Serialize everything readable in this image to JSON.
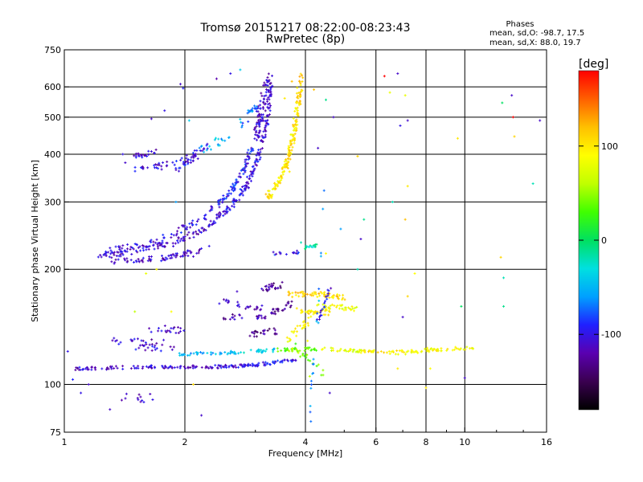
{
  "chart_data": {
    "type": "scatter",
    "title": "Tromsø 20151217 08:22:00-08:23:43",
    "subtitle": "RwPretec (8p)",
    "xlabel": "Frequency [MHz]",
    "ylabel": "Stationary phase Virtual Height [km]",
    "x_scale": "log",
    "y_scale": "log",
    "xlim": [
      1,
      16
    ],
    "ylim": [
      75,
      750
    ],
    "x_ticks": [
      {
        "value": 1,
        "label": "1"
      },
      {
        "value": 2,
        "label": "2"
      },
      {
        "value": 4,
        "label": "4"
      },
      {
        "value": 6,
        "label": "6"
      },
      {
        "value": 8,
        "label": "8"
      },
      {
        "value": 10,
        "label": "10"
      },
      {
        "value": 16,
        "label": "16"
      }
    ],
    "x_gridlines": [
      2,
      4,
      6,
      8,
      10
    ],
    "y_ticks": [
      {
        "value": 75,
        "label": "75"
      },
      {
        "value": 100,
        "label": "100"
      },
      {
        "value": 200,
        "label": "200"
      },
      {
        "value": 300,
        "label": "300"
      },
      {
        "value": 400,
        "label": "400"
      },
      {
        "value": 500,
        "label": "500"
      },
      {
        "value": 600,
        "label": "600"
      },
      {
        "value": 750,
        "label": "750"
      }
    ],
    "y_gridlines": [
      100,
      200,
      300,
      400,
      500,
      600
    ],
    "grid": true,
    "stats": {
      "heading": "Phases",
      "o_line": "mean, sd,O: -98.7, 17.5",
      "x_line": "mean, sd,X:  88.0, 19.7"
    },
    "colorbar": {
      "label": "[deg]",
      "range": [
        -180,
        180
      ],
      "ticks": [
        {
          "value": 100,
          "label": "100"
        },
        {
          "value": 0,
          "label": "0"
        },
        {
          "value": -100,
          "label": "-100"
        }
      ],
      "colormap": [
        "#000000",
        "#3a0050",
        "#5a00b0",
        "#2020ff",
        "#00a0ff",
        "#00e0e0",
        "#00e060",
        "#40ff00",
        "#c0ff00",
        "#ffff00",
        "#ffc000",
        "#ff6000",
        "#ff0000"
      ]
    },
    "traces": [
      {
        "segments": [
          [
            1.2,
            215,
            1.5,
            224,
            -110
          ],
          [
            1.5,
            224,
            1.9,
            235,
            -110
          ],
          [
            1.9,
            235,
            2.3,
            260,
            -110
          ],
          [
            2.3,
            260,
            2.6,
            290,
            -105
          ],
          [
            2.6,
            290,
            2.85,
            330,
            -100
          ],
          [
            2.85,
            330,
            3.05,
            390,
            -100
          ],
          [
            3.05,
            390,
            3.2,
            480,
            -105
          ],
          [
            3.2,
            480,
            3.3,
            620,
            -110
          ]
        ],
        "n": 260,
        "jitter": 0.012
      },
      {
        "segments": [
          [
            1.25,
            222,
            1.7,
            236,
            -105
          ],
          [
            1.7,
            236,
            2.2,
            270,
            -100
          ],
          [
            2.2,
            270,
            2.55,
            310,
            -95
          ],
          [
            2.55,
            310,
            2.8,
            360,
            -90
          ],
          [
            2.8,
            360,
            2.95,
            420,
            -95
          ]
        ],
        "n": 150,
        "jitter": 0.012
      },
      {
        "segments": [
          [
            1.3,
            210,
            1.8,
            214,
            -110
          ],
          [
            1.8,
            214,
            2.2,
            225,
            -110
          ]
        ],
        "n": 70,
        "jitter": 0.01
      },
      {
        "segments": [
          [
            3.0,
            440,
            3.1,
            520,
            -110
          ],
          [
            3.1,
            520,
            3.25,
            640,
            -110
          ]
        ],
        "n": 90,
        "jitter": 0.02
      },
      {
        "segments": [
          [
            3.2,
            305,
            3.45,
            340,
            100
          ],
          [
            3.45,
            340,
            3.6,
            380,
            100
          ],
          [
            3.6,
            380,
            3.72,
            440,
            105
          ],
          [
            3.72,
            440,
            3.82,
            520,
            100
          ],
          [
            3.82,
            520,
            3.9,
            640,
            110
          ]
        ],
        "n": 180,
        "jitter": 0.014
      },
      {
        "segments": [
          [
            1.05,
            110,
            1.6,
            111,
            -110
          ],
          [
            1.6,
            111,
            2.3,
            111,
            -110
          ],
          [
            2.3,
            111,
            2.9,
            112,
            -105
          ],
          [
            2.9,
            112,
            3.8,
            116,
            -100
          ]
        ],
        "n": 180,
        "jitter": 0.006
      },
      {
        "segments": [
          [
            1.9,
            120,
            2.6,
            121,
            -50
          ],
          [
            2.6,
            121,
            3.4,
            123,
            -40
          ],
          [
            3.4,
            123,
            4.4,
            124,
            40
          ],
          [
            4.4,
            124,
            5.6,
            122,
            80
          ],
          [
            5.6,
            122,
            7.5,
            122,
            100
          ],
          [
            7.5,
            122,
            10.6,
            125,
            90
          ]
        ],
        "n": 190,
        "jitter": 0.006
      },
      {
        "segments": [
          [
            3.6,
            172,
            4.4,
            172,
            110
          ],
          [
            4.4,
            172,
            5.0,
            169,
            105
          ]
        ],
        "n": 60,
        "jitter": 0.01
      },
      {
        "segments": [
          [
            4.3,
            160,
            5.4,
            158,
            80
          ],
          [
            3.8,
            156,
            4.6,
            154,
            100
          ]
        ],
        "n": 70,
        "jitter": 0.01
      },
      {
        "segments": [
          [
            3.3,
            220,
            3.9,
            222,
            -100
          ],
          [
            4.0,
            228,
            4.3,
            232,
            -20
          ]
        ],
        "n": 30,
        "jitter": 0.006
      },
      {
        "segments": [
          [
            1.5,
            365,
            1.9,
            380,
            -105
          ],
          [
            1.9,
            380,
            2.3,
            420,
            -100
          ],
          [
            1.9,
            360,
            2.15,
            395,
            -100
          ],
          [
            1.5,
            395,
            1.7,
            405,
            -110
          ]
        ],
        "n": 90,
        "jitter": 0.01
      },
      {
        "segments": [
          [
            2.2,
            410,
            2.8,
            480,
            -50
          ],
          [
            2.8,
            480,
            3.0,
            540,
            -70
          ]
        ],
        "n": 40,
        "jitter": 0.02
      },
      {
        "segments": [
          [
            2.5,
            150,
            3.2,
            150,
            -120
          ],
          [
            2.4,
            165,
            3.1,
            158,
            -115
          ],
          [
            2.9,
            135,
            3.4,
            138,
            -130
          ],
          [
            3.3,
            155,
            3.7,
            162,
            -125
          ],
          [
            3.1,
            178,
            3.5,
            182,
            -125
          ]
        ],
        "n": 120,
        "jitter": 0.012
      },
      {
        "segments": [
          [
            1.3,
            130,
            1.8,
            128,
            -110
          ],
          [
            1.5,
            125,
            1.9,
            125,
            -105
          ],
          [
            1.6,
            140,
            2.0,
            138,
            -110
          ]
        ],
        "n": 60,
        "jitter": 0.015
      },
      {
        "segments": [
          [
            1.35,
            93,
            1.65,
            92,
            -110
          ]
        ],
        "n": 12,
        "jitter": 0.02
      },
      {
        "segments": [
          [
            3.6,
            132,
            3.9,
            140,
            90
          ],
          [
            3.9,
            140,
            4.2,
            150,
            95
          ],
          [
            3.7,
            125,
            4.1,
            118,
            60
          ],
          [
            3.8,
            128,
            4.5,
            104,
            40
          ]
        ],
        "n": 50,
        "jitter": 0.015
      },
      {
        "segments": [
          [
            4.3,
            145,
            4.6,
            178,
            -100
          ],
          [
            4.1,
            80,
            4.5,
            330,
            -60
          ],
          [
            6.5,
            120,
            9.0,
            125,
            90
          ]
        ],
        "n": 60,
        "jitter": 0.01
      }
    ],
    "scattered_points": [
      [
        1.02,
        122,
        -100
      ],
      [
        1.05,
        103,
        -90
      ],
      [
        1.15,
        100,
        -110
      ],
      [
        1.1,
        95,
        -100
      ],
      [
        1.3,
        86,
        -110
      ],
      [
        1.95,
        610,
        -110
      ],
      [
        1.98,
        595,
        -90
      ],
      [
        1.78,
        520,
        -100
      ],
      [
        1.65,
        495,
        -110
      ],
      [
        2.4,
        630,
        -120
      ],
      [
        2.6,
        650,
        -100
      ],
      [
        2.75,
        665,
        -40
      ],
      [
        2.05,
        490,
        -40
      ],
      [
        1.9,
        300,
        -60
      ],
      [
        1.7,
        200,
        90
      ],
      [
        1.6,
        195,
        80
      ],
      [
        1.85,
        155,
        90
      ],
      [
        1.5,
        155,
        60
      ],
      [
        2.7,
        175,
        -110
      ],
      [
        3.5,
        185,
        -130
      ],
      [
        2.1,
        100,
        110
      ],
      [
        2.2,
        83,
        -110
      ],
      [
        4.6,
        95,
        -110
      ],
      [
        6.8,
        650,
        -110
      ],
      [
        6.3,
        640,
        180
      ],
      [
        6.6,
        300,
        -20
      ],
      [
        7.1,
        570,
        80
      ],
      [
        7.2,
        490,
        -110
      ],
      [
        6.5,
        580,
        80
      ],
      [
        6.9,
        475,
        -100
      ],
      [
        7.2,
        330,
        100
      ],
      [
        7.1,
        270,
        120
      ],
      [
        7.5,
        195,
        90
      ],
      [
        7.2,
        170,
        110
      ],
      [
        7.0,
        150,
        -110
      ],
      [
        6.8,
        110,
        100
      ],
      [
        5.4,
        200,
        -20
      ],
      [
        5.5,
        240,
        -110
      ],
      [
        5.6,
        270,
        -10
      ],
      [
        4.5,
        220,
        90
      ],
      [
        4.9,
        255,
        -60
      ],
      [
        4.7,
        500,
        -110
      ],
      [
        4.3,
        415,
        -110
      ],
      [
        4.5,
        555,
        -10
      ],
      [
        5.4,
        395,
        110
      ],
      [
        4.2,
        590,
        120
      ],
      [
        3.9,
        235,
        -20
      ],
      [
        4.1,
        105,
        60
      ],
      [
        8.2,
        110,
        90
      ],
      [
        8.0,
        98,
        100
      ],
      [
        9.6,
        440,
        100
      ],
      [
        9.8,
        160,
        0
      ],
      [
        10.0,
        104,
        -110
      ],
      [
        12.5,
        190,
        -20
      ],
      [
        12.3,
        215,
        110
      ],
      [
        12.4,
        545,
        0
      ],
      [
        13.1,
        570,
        -110
      ],
      [
        13.2,
        500,
        180
      ],
      [
        13.3,
        445,
        110
      ],
      [
        14.8,
        335,
        -20
      ],
      [
        15.4,
        490,
        -110
      ],
      [
        12.5,
        160,
        -10
      ],
      [
        1.4,
        400,
        -100
      ],
      [
        1.42,
        380,
        -110
      ],
      [
        2.0,
        260,
        -100
      ],
      [
        2.3,
        230,
        -100
      ],
      [
        2.1,
        216,
        -110
      ],
      [
        1.75,
        365,
        -110
      ],
      [
        3.7,
        620,
        120
      ],
      [
        3.55,
        560,
        100
      ],
      [
        3.65,
        360,
        100
      ],
      [
        4.05,
        130,
        90
      ],
      [
        3.85,
        170,
        100
      ]
    ]
  }
}
